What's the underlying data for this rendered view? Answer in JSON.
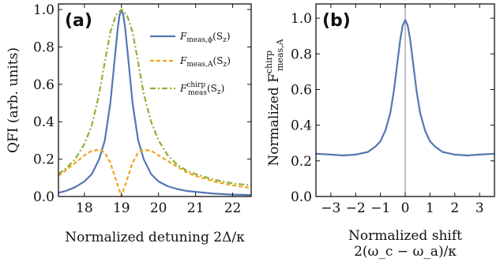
{
  "chart_data": [
    {
      "panel": "(a)",
      "type": "line",
      "xlabel": "Normalized detuning 2Δ/κ",
      "ylabel": "QFI (arb. units)",
      "xlim": [
        17.3,
        22.5
      ],
      "ylim": [
        0,
        1.03
      ],
      "xticks": [
        "18",
        "19",
        "20",
        "21",
        "22"
      ],
      "xtick_values": [
        18,
        19,
        20,
        21,
        22
      ],
      "yticks": [
        "0.0",
        "0.2",
        "0.4",
        "0.6",
        "0.8",
        "1.0"
      ],
      "ytick_values": [
        0,
        0.2,
        0.4,
        0.6,
        0.8,
        1.0
      ],
      "legend_position": "top-right",
      "series": [
        {
          "name": "F_meas,ϕ(S_z)",
          "color": "#5577b3",
          "style": "solid",
          "x": [
            17.3,
            17.5,
            17.75,
            18.0,
            18.2,
            18.4,
            18.55,
            18.7,
            18.8,
            18.9,
            18.95,
            19.0,
            19.05,
            19.1,
            19.2,
            19.3,
            19.45,
            19.6,
            19.8,
            20.0,
            20.25,
            20.5,
            20.75,
            21.0,
            21.5,
            22.0,
            22.5
          ],
          "y": [
            0.02,
            0.03,
            0.05,
            0.08,
            0.12,
            0.2,
            0.3,
            0.5,
            0.7,
            0.9,
            0.97,
            1.0,
            0.97,
            0.9,
            0.7,
            0.5,
            0.3,
            0.2,
            0.12,
            0.08,
            0.055,
            0.04,
            0.03,
            0.025,
            0.015,
            0.01,
            0.008
          ]
        },
        {
          "name": "F_meas,A(S_z)",
          "color": "#f2a31c",
          "style": "dashed",
          "x": [
            17.3,
            17.5,
            17.75,
            18.0,
            18.2,
            18.4,
            18.55,
            18.7,
            18.85,
            19.0,
            19.15,
            19.3,
            19.45,
            19.6,
            19.8,
            20.0,
            20.25,
            20.5,
            20.75,
            21.0,
            21.25,
            21.5,
            22.0,
            22.5
          ],
          "y": [
            0.11,
            0.14,
            0.18,
            0.22,
            0.245,
            0.25,
            0.235,
            0.18,
            0.09,
            0.0,
            0.09,
            0.18,
            0.235,
            0.25,
            0.245,
            0.22,
            0.19,
            0.16,
            0.13,
            0.11,
            0.095,
            0.08,
            0.06,
            0.045
          ]
        },
        {
          "name": "F_meas^chirp(S_z)",
          "color": "#8fb03a",
          "style": "dashdot",
          "x": [
            17.3,
            17.5,
            17.75,
            18.0,
            18.2,
            18.4,
            18.55,
            18.7,
            18.85,
            19.0,
            19.15,
            19.3,
            19.45,
            19.6,
            19.8,
            20.0,
            20.25,
            20.5,
            20.75,
            21.0,
            21.5,
            22.0,
            22.5
          ],
          "y": [
            0.12,
            0.15,
            0.2,
            0.28,
            0.38,
            0.55,
            0.72,
            0.88,
            0.97,
            1.0,
            0.97,
            0.88,
            0.72,
            0.55,
            0.4,
            0.3,
            0.22,
            0.17,
            0.14,
            0.12,
            0.09,
            0.07,
            0.06
          ]
        }
      ]
    },
    {
      "panel": "(b)",
      "type": "line",
      "xlabel": "Normalized shift",
      "xlabel_line2": "2(ω_c − ω_a)/κ",
      "ylabel": "Normalized F",
      "ylabel_sup": "chirp",
      "ylabel_sub": "meas,A",
      "xlim": [
        -3.6,
        3.6
      ],
      "ylim": [
        0,
        1.08
      ],
      "xticks": [
        "−3",
        "−2",
        "−1",
        "0",
        "1",
        "2",
        "3"
      ],
      "xtick_values": [
        -3,
        -2,
        -1,
        0,
        1,
        2,
        3
      ],
      "yticks": [
        "0.0",
        "0.2",
        "0.4",
        "0.6",
        "0.8",
        "1.0"
      ],
      "ytick_values": [
        0,
        0.2,
        0.4,
        0.6,
        0.8,
        1.0
      ],
      "vertical_line_x": 0,
      "series": [
        {
          "color": "#5577b3",
          "style": "solid",
          "x": [
            -3.6,
            -3.0,
            -2.5,
            -2.0,
            -1.5,
            -1.2,
            -1.0,
            -0.8,
            -0.6,
            -0.45,
            -0.3,
            -0.2,
            -0.1,
            0.0,
            0.1,
            0.2,
            0.3,
            0.45,
            0.6,
            0.8,
            1.0,
            1.2,
            1.5,
            2.0,
            2.5,
            3.0,
            3.6
          ],
          "y": [
            0.24,
            0.235,
            0.23,
            0.235,
            0.25,
            0.28,
            0.31,
            0.37,
            0.47,
            0.6,
            0.77,
            0.88,
            0.96,
            0.99,
            0.96,
            0.88,
            0.77,
            0.6,
            0.47,
            0.37,
            0.31,
            0.28,
            0.25,
            0.235,
            0.23,
            0.235,
            0.24
          ]
        }
      ]
    }
  ],
  "legend": {
    "entries": [
      {
        "main": "F",
        "sub": "meas,ϕ",
        "sup": "",
        "arg": "(S",
        "argsub": "z",
        "close": ")"
      },
      {
        "main": "F",
        "sub": "meas,A",
        "sup": "",
        "arg": "(S",
        "argsub": "z",
        "close": ")"
      },
      {
        "main": "F",
        "sub": "meas",
        "sup": "chirp",
        "arg": "(S",
        "argsub": "z",
        "close": ")"
      }
    ]
  }
}
